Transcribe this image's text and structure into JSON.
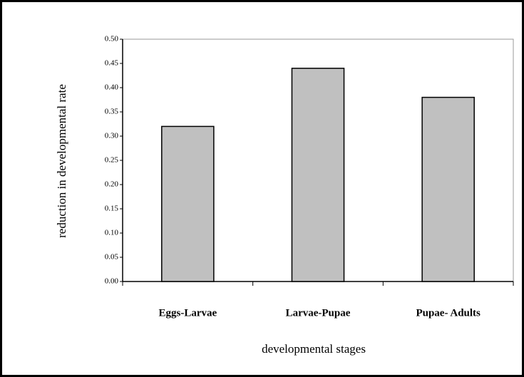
{
  "chart_data": {
    "type": "bar",
    "categories": [
      "Eggs-Larvae",
      "Larvae-Pupae",
      "Pupae- Adults"
    ],
    "values": [
      0.32,
      0.44,
      0.38
    ],
    "color": "#c0c0c0",
    "xlabel": "developmental stages",
    "ylabel": "reduction in developmental rate",
    "ylim": [
      0,
      0.5
    ],
    "yticks": [
      {
        "value": 0,
        "label": "0.00"
      },
      0.05,
      {
        "value": 0.1,
        "label": "0.10"
      },
      0.15,
      {
        "value": 0.2,
        "label": "0.20"
      },
      0.25,
      {
        "value": 0.3,
        "label": "0.30"
      },
      0.35,
      {
        "value": 0.4,
        "label": "0.40"
      },
      0.45,
      {
        "value": 0.5,
        "label": "0.50"
      }
    ],
    "grid": false
  }
}
